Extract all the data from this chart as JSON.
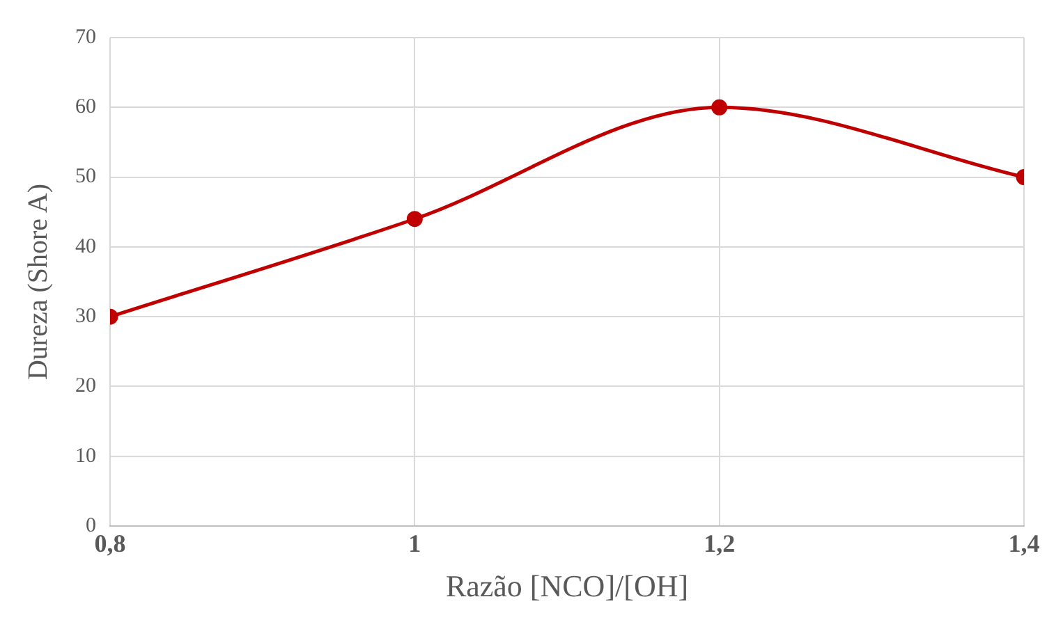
{
  "chart_data": {
    "type": "line",
    "xlabel": "Razão [NCO]/[OH]",
    "ylabel": "Dureza (Shore A)",
    "x": [
      0.8,
      1,
      1.2,
      1.4
    ],
    "series": [
      {
        "color": "#c00000",
        "values": [
          30,
          44,
          60,
          50
        ]
      }
    ],
    "xlim": [
      0.8,
      1.4
    ],
    "xticks": [
      {
        "value": 0.8,
        "label": "0,8"
      },
      1,
      {
        "value": 1.2,
        "label": "1,2"
      },
      {
        "value": 1.4,
        "label": "1,4"
      }
    ],
    "ylim": [
      0,
      70
    ],
    "yticks": [
      0,
      10,
      20,
      30,
      40,
      50,
      60,
      70
    ],
    "grid": true,
    "legend": false,
    "marker": "circle",
    "line_style": "solid"
  }
}
